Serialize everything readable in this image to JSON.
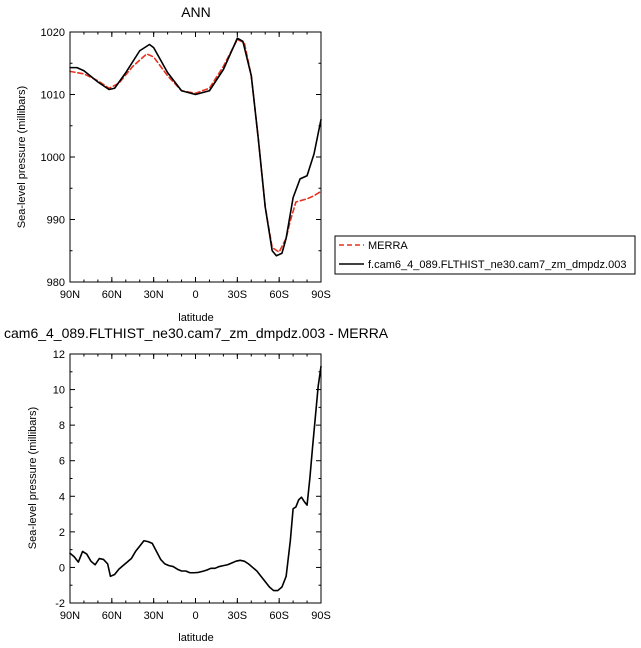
{
  "chart_data": [
    {
      "type": "line",
      "title": "ANN",
      "xlabel": "latitude",
      "ylabel": "Sea-level pressure (millibars)",
      "xlim": [
        90,
        -90
      ],
      "ylim": [
        980,
        1020
      ],
      "xticks": [
        {
          "value": 90,
          "label": "90N"
        },
        {
          "value": 60,
          "label": "60N"
        },
        {
          "value": 30,
          "label": "30N"
        },
        {
          "value": 0,
          "label": "0"
        },
        {
          "value": -30,
          "label": "30S"
        },
        {
          "value": -60,
          "label": "60S"
        },
        {
          "value": -90,
          "label": "90S"
        }
      ],
      "yticks": [
        980,
        990,
        1000,
        1010,
        1020
      ],
      "legend_position": "right",
      "series": [
        {
          "name": "MERRA",
          "color": "#e8321f",
          "dash": "dashed",
          "x": [
            90,
            80,
            70,
            62,
            55,
            45,
            35,
            30,
            20,
            10,
            0,
            -10,
            -20,
            -30,
            -35,
            -40,
            -45,
            -50,
            -55,
            -60,
            -65,
            -68,
            -72,
            -75,
            -80,
            -85,
            -90
          ],
          "y": [
            1013.7,
            1013.3,
            1012.2,
            1011.0,
            1011.8,
            1014.5,
            1016.5,
            1016.0,
            1013.0,
            1010.6,
            1010.2,
            1011.0,
            1014.5,
            1018.8,
            1018.3,
            1013.0,
            1003.0,
            992.0,
            985.5,
            984.8,
            987.0,
            989.8,
            992.8,
            993.0,
            993.3,
            993.8,
            994.5
          ]
        },
        {
          "name": "f.cam6_4_089.FLTHIST_ne30.cam7_zm_dmpdz.003",
          "color": "#000000",
          "dash": "solid",
          "x": [
            90,
            85,
            80,
            70,
            62,
            58,
            50,
            40,
            33,
            30,
            20,
            10,
            0,
            -10,
            -20,
            -30,
            -34,
            -40,
            -45,
            -50,
            -55,
            -58,
            -62,
            -65,
            -70,
            -75,
            -80,
            -85,
            -90
          ],
          "y": [
            1014.3,
            1014.3,
            1013.8,
            1012.0,
            1010.8,
            1011.0,
            1013.5,
            1017.0,
            1018.0,
            1017.5,
            1013.5,
            1010.6,
            1010.0,
            1010.6,
            1014.0,
            1019.0,
            1018.5,
            1013.0,
            1003.0,
            992.0,
            985.0,
            984.2,
            984.6,
            987.0,
            993.5,
            996.5,
            997.0,
            1000.5,
            1006.0
          ]
        }
      ]
    },
    {
      "type": "line",
      "title": "cam6_4_089.FLTHIST_ne30.cam7_zm_dmpdz.003 - MERRA",
      "xlabel": "latitude",
      "ylabel": "Sea-level pressure (millibars)",
      "xlim": [
        90,
        -90
      ],
      "ylim": [
        -2,
        12
      ],
      "xticks": [
        {
          "value": 90,
          "label": "90N"
        },
        {
          "value": 60,
          "label": "60N"
        },
        {
          "value": 30,
          "label": "30N"
        },
        {
          "value": 0,
          "label": "0"
        },
        {
          "value": -30,
          "label": "30S"
        },
        {
          "value": -60,
          "label": "60S"
        },
        {
          "value": -90,
          "label": "90S"
        }
      ],
      "yticks": [
        -2,
        0,
        2,
        4,
        6,
        8,
        10,
        12
      ],
      "series": [
        {
          "name": "",
          "color": "#000000",
          "dash": "solid",
          "x": [
            90,
            87,
            84,
            81,
            78,
            75,
            72,
            69,
            66,
            63,
            61,
            58,
            55,
            52,
            49,
            46,
            43,
            40,
            37,
            34,
            31,
            28,
            25,
            22,
            19,
            16,
            13,
            10,
            7,
            4,
            1,
            -2,
            -5,
            -8,
            -11,
            -14,
            -17,
            -20,
            -23,
            -26,
            -29,
            -32,
            -35,
            -38,
            -41,
            -44,
            -47,
            -50,
            -53,
            -56,
            -59,
            -62,
            -65,
            -68,
            -70,
            -72,
            -74,
            -76,
            -78,
            -80,
            -82,
            -84,
            -86,
            -88,
            -90
          ],
          "y": [
            0.8,
            0.6,
            0.3,
            0.9,
            0.75,
            0.35,
            0.15,
            0.5,
            0.45,
            0.2,
            -0.5,
            -0.4,
            -0.1,
            0.1,
            0.3,
            0.5,
            0.9,
            1.2,
            1.5,
            1.45,
            1.35,
            0.9,
            0.45,
            0.2,
            0.1,
            0.05,
            -0.1,
            -0.2,
            -0.2,
            -0.3,
            -0.3,
            -0.28,
            -0.22,
            -0.15,
            -0.05,
            -0.05,
            0.05,
            0.1,
            0.15,
            0.25,
            0.35,
            0.4,
            0.35,
            0.2,
            0.0,
            -0.2,
            -0.5,
            -0.8,
            -1.1,
            -1.3,
            -1.3,
            -1.1,
            -0.5,
            1.5,
            3.3,
            3.4,
            3.8,
            3.95,
            3.7,
            3.5,
            5.0,
            6.8,
            8.5,
            10.2,
            11.3
          ]
        }
      ]
    }
  ]
}
